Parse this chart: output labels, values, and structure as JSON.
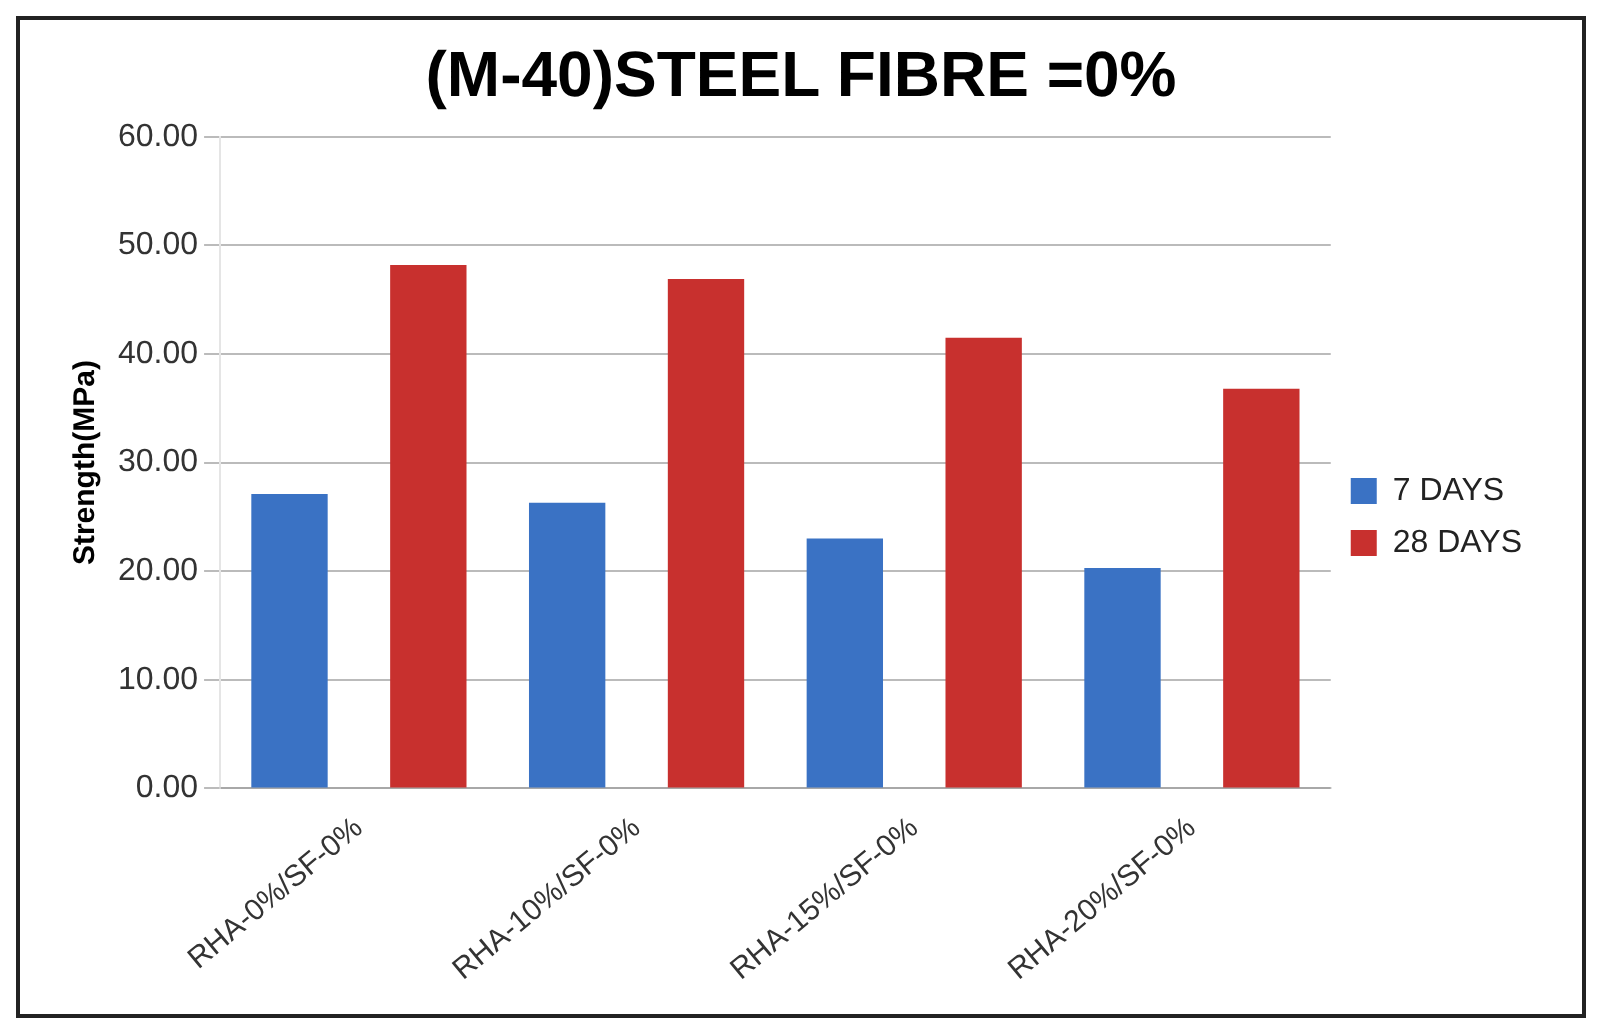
{
  "chart_data": {
    "type": "bar",
    "title": "(M-40)STEEL FIBRE =0%",
    "ylabel": "Strength(MPa)",
    "categories": [
      "RHA-0%/SF-0%",
      "RHA-10%/SF-0%",
      "RHA-15%/SF-0%",
      "RHA-20%/SF-0%"
    ],
    "series": [
      {
        "name": "7 DAYS",
        "color": "#3a72c4",
        "values": [
          27.1,
          26.3,
          23.0,
          20.3
        ]
      },
      {
        "name": "28 DAYS",
        "color": "#c8302e",
        "values": [
          48.2,
          46.9,
          41.5,
          36.8
        ]
      }
    ],
    "ylim": [
      0,
      60
    ],
    "yticks": [
      {
        "value": 0,
        "label": "0.00"
      },
      {
        "value": 10,
        "label": "10.00"
      },
      {
        "value": 20,
        "label": "20.00"
      },
      {
        "value": 30,
        "label": "30.00"
      },
      {
        "value": 40,
        "label": "40.00"
      },
      {
        "value": 50,
        "label": "50.00"
      },
      {
        "value": 60,
        "label": "60.00"
      }
    ],
    "grid": "y",
    "legend": "right"
  }
}
